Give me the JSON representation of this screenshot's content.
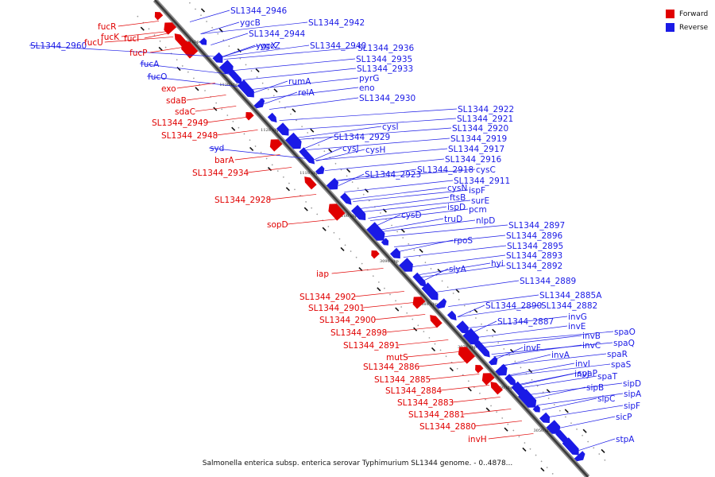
{
  "caption": "Salmonella enterica subsp. enterica serovar Typhimurium SL1344 genome. - 0..4878...",
  "legend": {
    "forward": {
      "label": "Forward",
      "color": "#e00000"
    },
    "reverse": {
      "label": "Reverse",
      "color": "#1a1ae6"
    }
  },
  "ticks": [
    "1140 kbp",
    "1130 kbp",
    "1120 kbp",
    "1110 kbp",
    "1100 kbp",
    "3090 kbp",
    "3080 kbp",
    "3070 kbp",
    "3060 kbp",
    "3050 kbp"
  ],
  "reverse_labels": [
    "SL1344_2960",
    "fucA",
    "fucO",
    "SL1344_2946",
    "ygcB",
    "SL1344_2944",
    "ygcX",
    "SL1344_2942",
    "ygcZ",
    "SL1344_2940",
    "SL1344_2936",
    "SL1344_2935",
    "SL1344_2933",
    "rumA",
    "pyrG",
    "relA",
    "eno",
    "SL1344_2930",
    "SL1344_2922",
    "SL1344_2921",
    "SL1344_2920",
    "cysI",
    "SL1344_2919",
    "SL1344_2929",
    "SL1344_2917",
    "cysJ",
    "cysH",
    "SL1344_2916",
    "SL1344_2923",
    "SL1344_2918",
    "cysC",
    "SL1344_2911",
    "cysN",
    "ispF",
    "ftsB",
    "surE",
    "ispD",
    "pcm",
    "cysD",
    "truD",
    "nlpD",
    "rpoS",
    "SL1344_2897",
    "SL1344_2896",
    "SL1344_2895",
    "SL1344_2893",
    "hyi",
    "slyA",
    "SL1344_2892",
    "SL1344_2889",
    "SL1344_2885A",
    "SL1344_2890",
    "SL1344_2882",
    "invG",
    "SL1344_2887",
    "invE",
    "spaO",
    "invB",
    "spaQ",
    "invF",
    "invC",
    "spaR",
    "invA",
    "invI",
    "spaS",
    "invJ",
    "spaP",
    "spaT",
    "sipD",
    "sipB",
    "sipA",
    "sipC",
    "sipF",
    "sicP",
    "stpA",
    "syd"
  ],
  "forward_labels": [
    "fucR",
    "fucK",
    "fucU",
    "fucI",
    "fucP",
    "exo",
    "sdaB",
    "sdaC",
    "SL1344_2949",
    "SL1344_2948",
    "barA",
    "SL1344_2934",
    "SL1344_2928",
    "sopD",
    "iap",
    "SL1344_2902",
    "SL1344_2901",
    "SL1344_2900",
    "SL1344_2898",
    "SL1344_2891",
    "mutS",
    "SL1344_2886",
    "SL1344_2885",
    "SL1344_2884",
    "SL1344_2883",
    "SL1344_2881",
    "SL1344_2880",
    "invH"
  ]
}
